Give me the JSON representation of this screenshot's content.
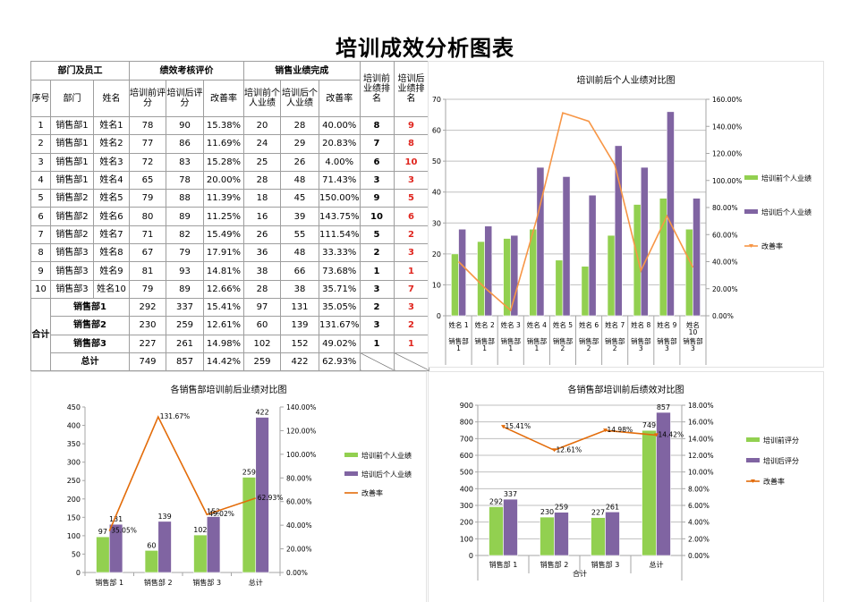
{
  "page": {
    "title": "培训成效分析图表"
  },
  "table": {
    "group_headers": [
      "部门及员工",
      "绩效考核评价",
      "销售业绩完成",
      "培训前业绩排名",
      "培训后业绩排名"
    ],
    "sub_headers": [
      "序号",
      "部门",
      "姓名",
      "培训前评分",
      "培训后评分",
      "改善率",
      "培训前个人业绩",
      "培训后个人业绩",
      "改善率"
    ],
    "rows": [
      {
        "no": "1",
        "dept": "销售部1",
        "name": "姓名1",
        "score_before": "78",
        "score_after": "90",
        "score_rate": "15.38%",
        "perf_before": "20",
        "perf_after": "28",
        "perf_rate": "40.00%",
        "rank_before": "8",
        "rank_after": "9"
      },
      {
        "no": "2",
        "dept": "销售部1",
        "name": "姓名2",
        "score_before": "77",
        "score_after": "86",
        "score_rate": "11.69%",
        "perf_before": "24",
        "perf_after": "29",
        "perf_rate": "20.83%",
        "rank_before": "7",
        "rank_after": "8"
      },
      {
        "no": "3",
        "dept": "销售部1",
        "name": "姓名3",
        "score_before": "72",
        "score_after": "83",
        "score_rate": "15.28%",
        "perf_before": "25",
        "perf_after": "26",
        "perf_rate": "4.00%",
        "rank_before": "6",
        "rank_after": "10"
      },
      {
        "no": "4",
        "dept": "销售部1",
        "name": "姓名4",
        "score_before": "65",
        "score_after": "78",
        "score_rate": "20.00%",
        "perf_before": "28",
        "perf_after": "48",
        "perf_rate": "71.43%",
        "rank_before": "3",
        "rank_after": "3"
      },
      {
        "no": "5",
        "dept": "销售部2",
        "name": "姓名5",
        "score_before": "79",
        "score_after": "88",
        "score_rate": "11.39%",
        "perf_before": "18",
        "perf_after": "45",
        "perf_rate": "150.00%",
        "rank_before": "9",
        "rank_after": "5"
      },
      {
        "no": "6",
        "dept": "销售部2",
        "name": "姓名6",
        "score_before": "80",
        "score_after": "89",
        "score_rate": "11.25%",
        "perf_before": "16",
        "perf_after": "39",
        "perf_rate": "143.75%",
        "rank_before": "10",
        "rank_after": "6"
      },
      {
        "no": "7",
        "dept": "销售部2",
        "name": "姓名7",
        "score_before": "71",
        "score_after": "82",
        "score_rate": "15.49%",
        "perf_before": "26",
        "perf_after": "55",
        "perf_rate": "111.54%",
        "rank_before": "5",
        "rank_after": "2"
      },
      {
        "no": "8",
        "dept": "销售部3",
        "name": "姓名8",
        "score_before": "67",
        "score_after": "79",
        "score_rate": "17.91%",
        "perf_before": "36",
        "perf_after": "48",
        "perf_rate": "33.33%",
        "rank_before": "2",
        "rank_after": "3"
      },
      {
        "no": "9",
        "dept": "销售部3",
        "name": "姓名9",
        "score_before": "81",
        "score_after": "93",
        "score_rate": "14.81%",
        "perf_before": "38",
        "perf_after": "66",
        "perf_rate": "73.68%",
        "rank_before": "1",
        "rank_after": "1"
      },
      {
        "no": "10",
        "dept": "销售部3",
        "name": "姓名10",
        "score_before": "79",
        "score_after": "89",
        "score_rate": "12.66%",
        "perf_before": "28",
        "perf_after": "38",
        "perf_rate": "35.71%",
        "rank_before": "3",
        "rank_after": "7"
      }
    ],
    "summary_label": "合计",
    "summary_rows": [
      {
        "dept": "销售部1",
        "score_before": "292",
        "score_after": "337",
        "score_rate": "15.41%",
        "perf_before": "97",
        "perf_after": "131",
        "perf_rate": "35.05%",
        "rank_before": "2",
        "rank_after": "3"
      },
      {
        "dept": "销售部2",
        "score_before": "230",
        "score_after": "259",
        "score_rate": "12.61%",
        "perf_before": "60",
        "perf_after": "139",
        "perf_rate": "131.67%",
        "rank_before": "3",
        "rank_after": "2"
      },
      {
        "dept": "销售部3",
        "score_before": "227",
        "score_after": "261",
        "score_rate": "14.98%",
        "perf_before": "102",
        "perf_after": "152",
        "perf_rate": "49.02%",
        "rank_before": "1",
        "rank_after": "1"
      }
    ],
    "total_row": {
      "label": "总计",
      "score_before": "749",
      "score_after": "857",
      "score_rate": "14.42%",
      "perf_before": "259",
      "perf_after": "422",
      "perf_rate": "62.93%"
    }
  },
  "colors": {
    "before": "#92d050",
    "after": "#8064a2",
    "rate": "#f79646",
    "rate_dark": "#e36c0a",
    "grid": "#bfbfbf",
    "axis": "#a6a6a6",
    "rank_after": "#e0261f"
  },
  "chart_data": [
    {
      "id": "individual",
      "type": "bar",
      "title": "培训前后个人业绩对比图",
      "categories": [
        "姓名1",
        "姓名2",
        "姓名3",
        "姓名4",
        "姓名5",
        "姓名6",
        "姓名7",
        "姓名8",
        "姓名9",
        "姓名10"
      ],
      "category_groups": [
        "销售部1",
        "销售部1",
        "销售部1",
        "销售部1",
        "销售部2",
        "销售部2",
        "销售部2",
        "销售部3",
        "销售部3",
        "销售部3"
      ],
      "series": [
        {
          "name": "培训前个人业绩",
          "type": "bar",
          "axis": "left",
          "values": [
            20,
            24,
            25,
            28,
            18,
            16,
            26,
            36,
            38,
            28
          ]
        },
        {
          "name": "培训后个人业绩",
          "type": "bar",
          "axis": "left",
          "values": [
            28,
            29,
            26,
            48,
            45,
            39,
            55,
            48,
            66,
            38
          ]
        },
        {
          "name": "改善率",
          "type": "line",
          "axis": "right",
          "values": [
            40.0,
            20.83,
            4.0,
            71.43,
            150.0,
            143.75,
            111.54,
            33.33,
            73.68,
            35.71
          ]
        }
      ],
      "ylim": [
        0,
        70
      ],
      "yticks": [
        0,
        10,
        20,
        30,
        40,
        50,
        60,
        70
      ],
      "y2lim": [
        0,
        160
      ],
      "y2ticks": [
        "0.00%",
        "20.00%",
        "40.00%",
        "60.00%",
        "80.00%",
        "100.00%",
        "120.00%",
        "140.00%",
        "160.00%"
      ],
      "xlabel": "",
      "ylabel": "",
      "grid": true,
      "legend_position": "right",
      "data_labels": false
    },
    {
      "id": "dept_perf",
      "type": "bar",
      "title": "各销售部培训前后业绩对比图",
      "categories": [
        "销售部1",
        "销售部2",
        "销售部3",
        "总计"
      ],
      "series": [
        {
          "name": "培训前个人业绩",
          "type": "bar",
          "axis": "left",
          "values": [
            97,
            60,
            102,
            259
          ]
        },
        {
          "name": "培训后个人业绩",
          "type": "bar",
          "axis": "left",
          "values": [
            131,
            139,
            152,
            422
          ]
        },
        {
          "name": "改善率",
          "type": "line",
          "axis": "right",
          "values": [
            35.05,
            131.67,
            49.02,
            62.93
          ]
        }
      ],
      "rate_labels": [
        "35.05%",
        "131.67%",
        "49.02%",
        "62.93%"
      ],
      "ylim": [
        0,
        450
      ],
      "yticks": [
        0,
        50,
        100,
        150,
        200,
        250,
        300,
        350,
        400,
        450
      ],
      "y2lim": [
        0,
        140
      ],
      "y2ticks": [
        "0.00%",
        "20.00%",
        "40.00%",
        "60.00%",
        "80.00%",
        "100.00%",
        "120.00%",
        "140.00%"
      ],
      "xlabel": "",
      "ylabel": "",
      "grid": false,
      "legend_position": "right",
      "data_labels": true
    },
    {
      "id": "dept_score",
      "type": "bar",
      "title": "各销售部培训前后绩效对比图",
      "categories": [
        "销售部1",
        "销售部2",
        "销售部3",
        "总计"
      ],
      "axis_group_label": "合计",
      "series": [
        {
          "name": "培训前评分",
          "type": "bar",
          "axis": "left",
          "values": [
            292,
            230,
            227,
            749
          ]
        },
        {
          "name": "培训后评分",
          "type": "bar",
          "axis": "left",
          "values": [
            337,
            259,
            261,
            857
          ]
        },
        {
          "name": "改善率",
          "type": "line",
          "axis": "right",
          "values": [
            15.41,
            12.61,
            14.98,
            14.42
          ]
        }
      ],
      "rate_labels": [
        "15.41%",
        "12.61%",
        "14.98%",
        "14.42%"
      ],
      "ylim": [
        0,
        900
      ],
      "yticks": [
        0,
        100,
        200,
        300,
        400,
        500,
        600,
        700,
        800,
        900
      ],
      "y2lim": [
        0,
        18
      ],
      "y2ticks": [
        "0.00%",
        "2.00%",
        "4.00%",
        "6.00%",
        "8.00%",
        "10.00%",
        "12.00%",
        "14.00%",
        "16.00%",
        "18.00%"
      ],
      "xlabel": "合计",
      "ylabel": "",
      "grid": true,
      "legend_position": "right",
      "data_labels": true
    }
  ]
}
